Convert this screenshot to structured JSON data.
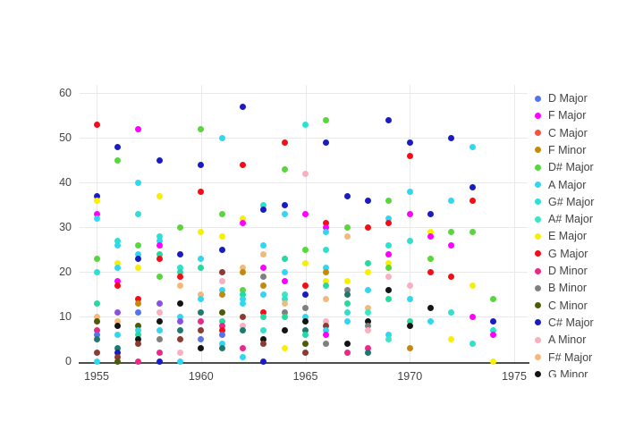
{
  "chart_data": {
    "type": "scatter",
    "title": "",
    "xlabel": "",
    "ylabel": "",
    "x_ticks": [
      1955,
      1960,
      1965,
      1970,
      1975
    ],
    "y_ticks": [
      0,
      10,
      20,
      30,
      40,
      50,
      60
    ],
    "x_range": [
      1954.2,
      1975.7
    ],
    "y_range": [
      -0.3,
      61.8
    ],
    "grid": true,
    "legend_position": "right",
    "legend": [
      {
        "label": "D Major",
        "color_key": "BLU"
      },
      {
        "label": "F Major",
        "color_key": "MAG"
      },
      {
        "label": "C Major",
        "color_key": "TOM"
      },
      {
        "label": "F Minor",
        "color_key": "DGO"
      },
      {
        "label": "D# Major",
        "color_key": "GRN"
      },
      {
        "label": "A Major",
        "color_key": "CYA"
      },
      {
        "label": "G# Major",
        "color_key": "TUR"
      },
      {
        "label": "A# Major",
        "color_key": "TU2"
      },
      {
        "label": "E Major",
        "color_key": "YEL"
      },
      {
        "label": "G Major",
        "color_key": "RED"
      },
      {
        "label": "D Minor",
        "color_key": "DPK"
      },
      {
        "label": "B Minor",
        "color_key": "GRY"
      },
      {
        "label": "C Minor",
        "color_key": "OLV"
      },
      {
        "label": "C# Major",
        "color_key": "NVY"
      },
      {
        "label": "A Minor",
        "color_key": "LPK"
      },
      {
        "label": "F# Major",
        "color_key": "TAN"
      },
      {
        "label": "G Minor",
        "color_key": "BLK"
      }
    ],
    "colors": {
      "BLU": "#5873e8",
      "MAG": "#ff00ff",
      "TOM": "#f4533e",
      "DGO": "#c38a0e",
      "GRN": "#58d63c",
      "CYA": "#33d6f0",
      "TUR": "#2fdfcf",
      "TU2": "#3be6c5",
      "YEL": "#f9ef00",
      "RED": "#f20d17",
      "DPK": "#e7298a",
      "GRY": "#7f7f7f",
      "OLV": "#4f5a06",
      "NVY": "#1a1bc0",
      "LPK": "#f9afbe",
      "TAN": "#f1ba7b",
      "BLK": "#141414",
      "SPR": "#26d8a2",
      "DTL": "#20796c",
      "PUR": "#8a52dc",
      "MAR": "#8c3b33"
    },
    "points": [
      [
        1955,
        53,
        "RED"
      ],
      [
        1955,
        37,
        "NVY"
      ],
      [
        1955,
        36,
        "YEL"
      ],
      [
        1955,
        33,
        "MAG"
      ],
      [
        1955,
        32,
        "CYA"
      ],
      [
        1955,
        23,
        "GRN"
      ],
      [
        1955,
        20,
        "TUR"
      ],
      [
        1955,
        13,
        "SPR"
      ],
      [
        1955,
        10,
        "TAN"
      ],
      [
        1955,
        9,
        "OLV"
      ],
      [
        1955,
        7,
        "DPK"
      ],
      [
        1955,
        6,
        "BLU"
      ],
      [
        1955,
        5,
        "DTL"
      ],
      [
        1955,
        2,
        "MAR"
      ],
      [
        1955,
        0,
        "CYA"
      ],
      [
        1956,
        48,
        "NVY"
      ],
      [
        1956,
        45,
        "GRN"
      ],
      [
        1956,
        27,
        "TUR"
      ],
      [
        1956,
        26,
        "CYA"
      ],
      [
        1956,
        22,
        "YEL"
      ],
      [
        1956,
        21,
        "CYA"
      ],
      [
        1956,
        18,
        "MAG"
      ],
      [
        1956,
        17,
        "RED"
      ],
      [
        1956,
        11,
        "PUR"
      ],
      [
        1956,
        9,
        "TAN"
      ],
      [
        1956,
        8,
        "BLK"
      ],
      [
        1956,
        6,
        "CYA"
      ],
      [
        1956,
        3,
        "DTL"
      ],
      [
        1956,
        2,
        "NVY"
      ],
      [
        1956,
        1,
        "MAR"
      ],
      [
        1956,
        0,
        "OLV"
      ],
      [
        1957,
        52,
        "MAG"
      ],
      [
        1957,
        40,
        "CYA"
      ],
      [
        1957,
        33,
        "TUR"
      ],
      [
        1957,
        26,
        "GRN"
      ],
      [
        1957,
        24,
        "CYA"
      ],
      [
        1957,
        23,
        "NVY"
      ],
      [
        1957,
        21,
        "YEL"
      ],
      [
        1957,
        14,
        "RED"
      ],
      [
        1957,
        13,
        "DGO"
      ],
      [
        1957,
        11,
        "BLU"
      ],
      [
        1957,
        8,
        "OLV"
      ],
      [
        1957,
        7,
        "CYA"
      ],
      [
        1957,
        6,
        "SPR"
      ],
      [
        1957,
        5,
        "BLK"
      ],
      [
        1957,
        4,
        "MAR"
      ],
      [
        1957,
        0,
        "DPK"
      ],
      [
        1958,
        45,
        "NVY"
      ],
      [
        1958,
        37,
        "YEL"
      ],
      [
        1958,
        28,
        "TUR"
      ],
      [
        1958,
        27,
        "CYA"
      ],
      [
        1958,
        26,
        "MAG"
      ],
      [
        1958,
        24,
        "SPR"
      ],
      [
        1958,
        23,
        "RED"
      ],
      [
        1958,
        19,
        "GRN"
      ],
      [
        1958,
        13,
        "PUR"
      ],
      [
        1958,
        11,
        "LPK"
      ],
      [
        1958,
        9,
        "BLK"
      ],
      [
        1958,
        7,
        "CYA"
      ],
      [
        1958,
        5,
        "GRY"
      ],
      [
        1958,
        2,
        "DPK"
      ],
      [
        1958,
        0,
        "NVY"
      ],
      [
        1959,
        30,
        "GRN"
      ],
      [
        1959,
        24,
        "NVY"
      ],
      [
        1959,
        21,
        "TUR"
      ],
      [
        1959,
        20,
        "SPR"
      ],
      [
        1959,
        19,
        "RED"
      ],
      [
        1959,
        17,
        "TAN"
      ],
      [
        1959,
        13,
        "BLK"
      ],
      [
        1959,
        10,
        "CYA"
      ],
      [
        1959,
        9,
        "PUR"
      ],
      [
        1959,
        7,
        "DTL"
      ],
      [
        1959,
        5,
        "MAR"
      ],
      [
        1959,
        2,
        "LPK"
      ],
      [
        1959,
        0,
        "CYA"
      ],
      [
        1960,
        52,
        "GRN"
      ],
      [
        1960,
        44,
        "NVY"
      ],
      [
        1960,
        38,
        "RED"
      ],
      [
        1960,
        29,
        "YEL"
      ],
      [
        1960,
        23,
        "CYA"
      ],
      [
        1960,
        21,
        "SPR"
      ],
      [
        1960,
        15,
        "TAN"
      ],
      [
        1960,
        14,
        "CYA"
      ],
      [
        1960,
        11,
        "DTL"
      ],
      [
        1960,
        9,
        "DPK"
      ],
      [
        1960,
        7,
        "MAR"
      ],
      [
        1960,
        5,
        "BLU"
      ],
      [
        1960,
        3,
        "BLK"
      ],
      [
        1961,
        50,
        "CYA"
      ],
      [
        1961,
        33,
        "GRN"
      ],
      [
        1961,
        28,
        "YEL"
      ],
      [
        1961,
        25,
        "NVY"
      ],
      [
        1961,
        20,
        "MAR"
      ],
      [
        1961,
        18,
        "LPK"
      ],
      [
        1961,
        16,
        "CYA"
      ],
      [
        1961,
        15,
        "DGO"
      ],
      [
        1961,
        11,
        "OLV"
      ],
      [
        1961,
        9,
        "SPR"
      ],
      [
        1961,
        8,
        "DPK"
      ],
      [
        1961,
        7,
        "RED"
      ],
      [
        1961,
        6,
        "BLU"
      ],
      [
        1961,
        4,
        "CYA"
      ],
      [
        1961,
        3,
        "DTL"
      ],
      [
        1962,
        57,
        "NVY"
      ],
      [
        1962,
        44,
        "RED"
      ],
      [
        1962,
        32,
        "YEL"
      ],
      [
        1962,
        31,
        "MAG"
      ],
      [
        1962,
        21,
        "TAN"
      ],
      [
        1962,
        20,
        "DGO"
      ],
      [
        1962,
        16,
        "GRN"
      ],
      [
        1962,
        15,
        "SPR"
      ],
      [
        1962,
        14,
        "CYA"
      ],
      [
        1962,
        13,
        "CYA"
      ],
      [
        1962,
        10,
        "MAR"
      ],
      [
        1962,
        8,
        "LPK"
      ],
      [
        1962,
        7,
        "DTL"
      ],
      [
        1962,
        3,
        "DPK"
      ],
      [
        1962,
        1,
        "CYA"
      ],
      [
        1963,
        35,
        "TUR"
      ],
      [
        1963,
        34,
        "NVY"
      ],
      [
        1963,
        26,
        "CYA"
      ],
      [
        1963,
        24,
        "TAN"
      ],
      [
        1963,
        21,
        "MAG"
      ],
      [
        1963,
        19,
        "GRY"
      ],
      [
        1963,
        17,
        "DGO"
      ],
      [
        1963,
        15,
        "CYA"
      ],
      [
        1963,
        11,
        "RED"
      ],
      [
        1963,
        10,
        "SPR"
      ],
      [
        1963,
        7,
        "TUR"
      ],
      [
        1963,
        5,
        "BLK"
      ],
      [
        1963,
        4,
        "MAR"
      ],
      [
        1963,
        0,
        "NVY"
      ],
      [
        1964,
        49,
        "RED"
      ],
      [
        1964,
        43,
        "GRN"
      ],
      [
        1964,
        35,
        "NVY"
      ],
      [
        1964,
        33,
        "CYA"
      ],
      [
        1964,
        23,
        "SPR"
      ],
      [
        1964,
        20,
        "CYA"
      ],
      [
        1964,
        18,
        "MAG"
      ],
      [
        1964,
        15,
        "TU2"
      ],
      [
        1964,
        14,
        "TUR"
      ],
      [
        1964,
        13,
        "TAN"
      ],
      [
        1964,
        11,
        "GRY"
      ],
      [
        1964,
        10,
        "SPR"
      ],
      [
        1964,
        7,
        "BLK"
      ],
      [
        1964,
        3,
        "YEL"
      ],
      [
        1965,
        53,
        "TUR"
      ],
      [
        1965,
        42,
        "LPK"
      ],
      [
        1965,
        33,
        "MAG"
      ],
      [
        1965,
        25,
        "GRN"
      ],
      [
        1965,
        22,
        "YEL"
      ],
      [
        1965,
        17,
        "RED"
      ],
      [
        1965,
        15,
        "NVY"
      ],
      [
        1965,
        12,
        "GRY"
      ],
      [
        1965,
        10,
        "CYA"
      ],
      [
        1965,
        9,
        "BLK"
      ],
      [
        1965,
        7,
        "DTL"
      ],
      [
        1965,
        6,
        "SPR"
      ],
      [
        1965,
        4,
        "OLV"
      ],
      [
        1965,
        2,
        "MAR"
      ],
      [
        1966,
        54,
        "GRN"
      ],
      [
        1966,
        49,
        "NVY"
      ],
      [
        1966,
        31,
        "RED"
      ],
      [
        1966,
        30,
        "MAG"
      ],
      [
        1966,
        29,
        "CYA"
      ],
      [
        1966,
        25,
        "TUR"
      ],
      [
        1966,
        21,
        "CYA"
      ],
      [
        1966,
        20,
        "DGO"
      ],
      [
        1966,
        18,
        "YEL"
      ],
      [
        1966,
        17,
        "SPR"
      ],
      [
        1966,
        14,
        "TAN"
      ],
      [
        1966,
        9,
        "LPK"
      ],
      [
        1966,
        8,
        "MAR"
      ],
      [
        1966,
        7,
        "CYA"
      ],
      [
        1966,
        6,
        "MAG"
      ],
      [
        1966,
        4,
        "GRY"
      ],
      [
        1967,
        37,
        "NVY"
      ],
      [
        1967,
        30,
        "GRN"
      ],
      [
        1967,
        28,
        "TAN"
      ],
      [
        1967,
        18,
        "YEL"
      ],
      [
        1967,
        16,
        "GRY"
      ],
      [
        1967,
        15,
        "DTL"
      ],
      [
        1967,
        13,
        "SPR"
      ],
      [
        1967,
        11,
        "TUR"
      ],
      [
        1967,
        9,
        "CYA"
      ],
      [
        1967,
        4,
        "BLK"
      ],
      [
        1967,
        2,
        "DPK"
      ],
      [
        1968,
        36,
        "NVY"
      ],
      [
        1968,
        30,
        "RED"
      ],
      [
        1968,
        22,
        "SPR"
      ],
      [
        1968,
        20,
        "YEL"
      ],
      [
        1968,
        16,
        "CYA"
      ],
      [
        1968,
        12,
        "TAN"
      ],
      [
        1968,
        11,
        "TU2"
      ],
      [
        1968,
        9,
        "BLK"
      ],
      [
        1968,
        8,
        "GRY"
      ],
      [
        1968,
        7,
        "LPK"
      ],
      [
        1968,
        3,
        "DPK"
      ],
      [
        1968,
        2,
        "DTL"
      ],
      [
        1969,
        54,
        "NVY"
      ],
      [
        1969,
        36,
        "GRN"
      ],
      [
        1969,
        32,
        "CYA"
      ],
      [
        1969,
        31,
        "RED"
      ],
      [
        1969,
        26,
        "TUR"
      ],
      [
        1969,
        24,
        "MAG"
      ],
      [
        1969,
        22,
        "YEL"
      ],
      [
        1969,
        21,
        "GRN"
      ],
      [
        1969,
        19,
        "LPK"
      ],
      [
        1969,
        16,
        "BLK"
      ],
      [
        1969,
        14,
        "SPR"
      ],
      [
        1969,
        6,
        "CYA"
      ],
      [
        1969,
        5,
        "TU2"
      ],
      [
        1970,
        49,
        "NVY"
      ],
      [
        1970,
        46,
        "RED"
      ],
      [
        1970,
        38,
        "CYA"
      ],
      [
        1970,
        33,
        "MAG"
      ],
      [
        1970,
        27,
        "TUR"
      ],
      [
        1970,
        17,
        "LPK"
      ],
      [
        1970,
        14,
        "CYA"
      ],
      [
        1970,
        9,
        "SPR"
      ],
      [
        1970,
        8,
        "BLK"
      ],
      [
        1970,
        3,
        "DGO"
      ],
      [
        1971,
        33,
        "NVY"
      ],
      [
        1971,
        29,
        "YEL"
      ],
      [
        1971,
        28,
        "MAG"
      ],
      [
        1971,
        23,
        "GRN"
      ],
      [
        1971,
        20,
        "RED"
      ],
      [
        1971,
        12,
        "BLK"
      ],
      [
        1971,
        9,
        "CYA"
      ],
      [
        1972,
        50,
        "NVY"
      ],
      [
        1972,
        36,
        "CYA"
      ],
      [
        1972,
        29,
        "GRN"
      ],
      [
        1972,
        26,
        "MAG"
      ],
      [
        1972,
        19,
        "RED"
      ],
      [
        1972,
        11,
        "TUR"
      ],
      [
        1972,
        5,
        "YEL"
      ],
      [
        1973,
        48,
        "CYA"
      ],
      [
        1973,
        39,
        "NVY"
      ],
      [
        1973,
        36,
        "RED"
      ],
      [
        1973,
        29,
        "GRN"
      ],
      [
        1973,
        17,
        "YEL"
      ],
      [
        1973,
        10,
        "MAG"
      ],
      [
        1973,
        4,
        "TUR"
      ],
      [
        1974,
        14,
        "GRN"
      ],
      [
        1974,
        9,
        "NVY"
      ],
      [
        1974,
        7,
        "TUR"
      ],
      [
        1974,
        6,
        "MAG"
      ],
      [
        1974,
        0,
        "YEL"
      ]
    ]
  }
}
